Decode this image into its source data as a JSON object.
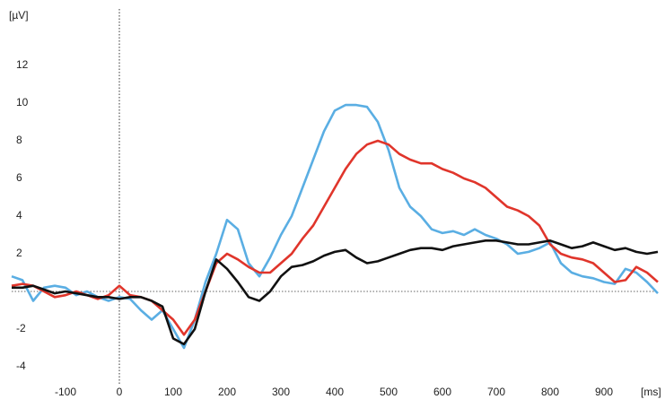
{
  "chart_data": {
    "type": "line",
    "x_label": "[ms]",
    "y_label": "[µV]",
    "x": [
      -200,
      -180,
      -160,
      -140,
      -120,
      -100,
      -80,
      -60,
      -40,
      -20,
      0,
      20,
      40,
      60,
      80,
      100,
      120,
      140,
      160,
      180,
      200,
      220,
      240,
      260,
      280,
      300,
      320,
      340,
      360,
      380,
      400,
      420,
      440,
      460,
      480,
      500,
      520,
      540,
      560,
      580,
      600,
      620,
      640,
      660,
      680,
      700,
      720,
      740,
      760,
      780,
      800,
      820,
      840,
      860,
      880,
      900,
      920,
      940,
      960,
      980,
      1000
    ],
    "series": [
      {
        "color": "#5aaee3",
        "values": [
          0.8,
          0.6,
          -0.5,
          0.2,
          0.3,
          0.2,
          -0.2,
          0.0,
          -0.3,
          -0.5,
          -0.3,
          -0.4,
          -1.0,
          -1.5,
          -1.0,
          -2.0,
          -3.0,
          -1.5,
          0.5,
          2.0,
          3.8,
          3.3,
          1.5,
          0.8,
          1.8,
          3.0,
          4.0,
          5.5,
          7.0,
          8.5,
          9.6,
          9.9,
          9.9,
          9.8,
          9.0,
          7.5,
          5.5,
          4.5,
          4.0,
          3.3,
          3.1,
          3.2,
          3.0,
          3.3,
          3.0,
          2.8,
          2.5,
          2.0,
          2.1,
          2.3,
          2.6,
          1.5,
          1.0,
          0.8,
          0.7,
          0.5,
          0.4,
          1.2,
          1.0,
          0.5,
          -0.1
        ]
      },
      {
        "color": "#e0352b",
        "values": [
          0.3,
          0.4,
          0.3,
          0.0,
          -0.3,
          -0.2,
          0.0,
          -0.2,
          -0.4,
          -0.2,
          0.3,
          -0.2,
          -0.3,
          -0.5,
          -1.0,
          -1.5,
          -2.3,
          -1.5,
          0.0,
          1.5,
          2.0,
          1.7,
          1.3,
          1.0,
          1.0,
          1.5,
          2.0,
          2.8,
          3.5,
          4.5,
          5.5,
          6.5,
          7.3,
          7.8,
          8.0,
          7.8,
          7.3,
          7.0,
          6.8,
          6.8,
          6.5,
          6.3,
          6.0,
          5.8,
          5.5,
          5.0,
          4.5,
          4.3,
          4.0,
          3.5,
          2.5,
          2.0,
          1.8,
          1.7,
          1.5,
          1.0,
          0.5,
          0.6,
          1.3,
          1.0,
          0.5
        ]
      },
      {
        "color": "#111111",
        "values": [
          0.2,
          0.2,
          0.3,
          0.1,
          -0.1,
          0.0,
          -0.1,
          -0.2,
          -0.3,
          -0.3,
          -0.4,
          -0.3,
          -0.3,
          -0.5,
          -0.8,
          -2.5,
          -2.8,
          -2.0,
          0.0,
          1.7,
          1.2,
          0.5,
          -0.3,
          -0.5,
          0.0,
          0.8,
          1.3,
          1.4,
          1.6,
          1.9,
          2.1,
          2.2,
          1.8,
          1.5,
          1.6,
          1.8,
          2.0,
          2.2,
          2.3,
          2.3,
          2.2,
          2.4,
          2.5,
          2.6,
          2.7,
          2.7,
          2.6,
          2.5,
          2.5,
          2.6,
          2.7,
          2.5,
          2.3,
          2.4,
          2.6,
          2.4,
          2.2,
          2.3,
          2.1,
          2.0,
          2.1
        ]
      }
    ],
    "xlim": [
      -200,
      1000
    ],
    "ylim": [
      -5,
      15
    ],
    "xticks": [
      -100,
      0,
      100,
      200,
      300,
      400,
      500,
      600,
      700,
      800,
      900
    ],
    "yticks": [
      -4,
      -2,
      2,
      4,
      6,
      8,
      10,
      12
    ],
    "zero_lines": true
  }
}
